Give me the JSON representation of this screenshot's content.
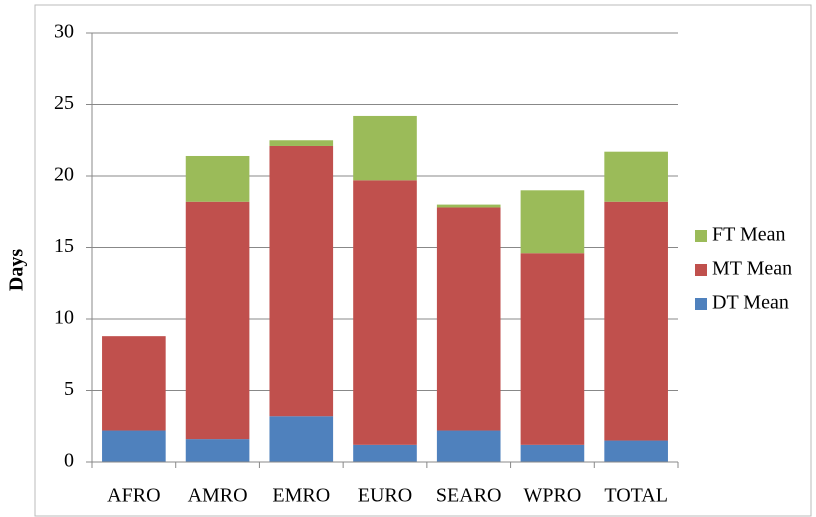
{
  "chart_data": {
    "type": "stacked_bar",
    "y_label": "Days",
    "categories": [
      "AFRO",
      "AMRO",
      "EMRO",
      "EURO",
      "SEARO",
      "WPRO",
      "TOTAL"
    ],
    "series": [
      {
        "name": "DT Mean",
        "color": "#4f81bd",
        "values": [
          2.2,
          1.6,
          3.2,
          1.2,
          2.2,
          1.2,
          1.5
        ]
      },
      {
        "name": "MT Mean",
        "color": "#c0504d",
        "values": [
          6.6,
          16.6,
          18.9,
          18.5,
          15.6,
          13.4,
          16.7
        ]
      },
      {
        "name": "FT Mean",
        "color": "#9bbb59",
        "values": [
          0,
          3.2,
          0.4,
          4.5,
          0.2,
          4.4,
          3.5
        ]
      }
    ],
    "ylim": [
      0,
      30
    ],
    "yticks": [
      0,
      5,
      10,
      15,
      20,
      25,
      30
    ],
    "grid": true
  }
}
